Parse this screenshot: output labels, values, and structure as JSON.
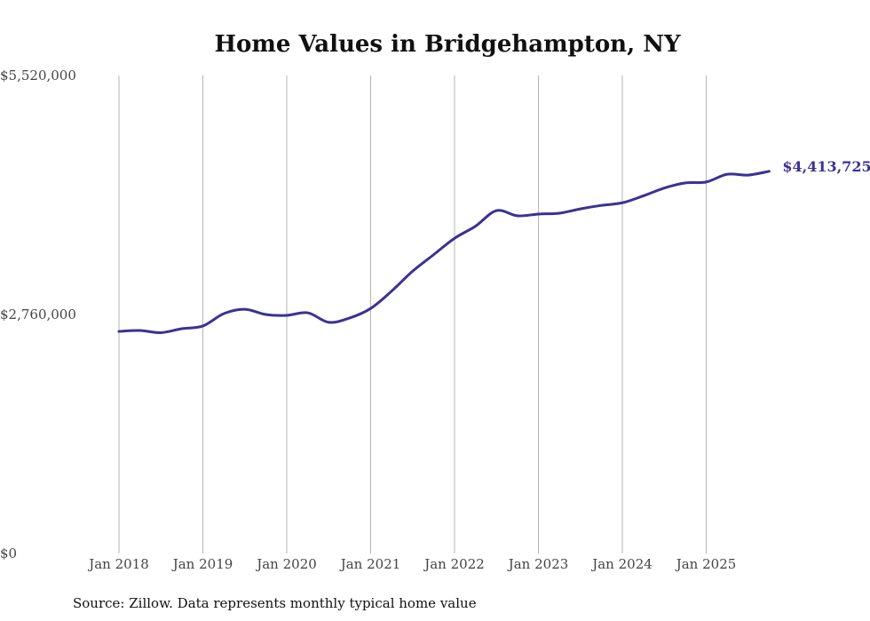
{
  "chart_data": {
    "type": "line",
    "title": "Home Values in Bridgehampton, NY",
    "xlabel": "",
    "ylabel": "",
    "source": "Source: Zillow. Data represents monthly typical home value",
    "ylim": [
      0,
      5520000
    ],
    "y_ticks": [
      {
        "value": 0,
        "label": "$0"
      },
      {
        "value": 2760000,
        "label": "$2,760,000"
      },
      {
        "value": 5520000,
        "label": "$5,520,000"
      }
    ],
    "x_ticks": [
      {
        "value": 2018.0,
        "label": "Jan 2018"
      },
      {
        "value": 2019.0,
        "label": "Jan 2019"
      },
      {
        "value": 2020.0,
        "label": "Jan 2020"
      },
      {
        "value": 2021.0,
        "label": "Jan 2021"
      },
      {
        "value": 2022.0,
        "label": "Jan 2022"
      },
      {
        "value": 2023.0,
        "label": "Jan 2023"
      },
      {
        "value": 2024.0,
        "label": "Jan 2024"
      },
      {
        "value": 2025.0,
        "label": "Jan 2025"
      }
    ],
    "grid": "vertical",
    "line_color": "#3b3195",
    "end_label": "$4,413,725",
    "series": [
      {
        "name": "Typical home value",
        "x": [
          2018.0,
          2018.25,
          2018.5,
          2018.75,
          2019.0,
          2019.25,
          2019.5,
          2019.75,
          2020.0,
          2020.25,
          2020.5,
          2020.75,
          2021.0,
          2021.25,
          2021.5,
          2021.75,
          2022.0,
          2022.25,
          2022.5,
          2022.75,
          2023.0,
          2023.25,
          2023.5,
          2023.75,
          2024.0,
          2024.25,
          2024.5,
          2024.75,
          2025.0,
          2025.25,
          2025.5,
          2025.75
        ],
        "values": [
          2565000,
          2575000,
          2550000,
          2596000,
          2627000,
          2770000,
          2820000,
          2760000,
          2750000,
          2780000,
          2670000,
          2720000,
          2830000,
          3030000,
          3260000,
          3450000,
          3640000,
          3780000,
          3960000,
          3900000,
          3920000,
          3930000,
          3980000,
          4020000,
          4050000,
          4130000,
          4220000,
          4280000,
          4290000,
          4380000,
          4370000,
          4413725
        ]
      }
    ]
  }
}
